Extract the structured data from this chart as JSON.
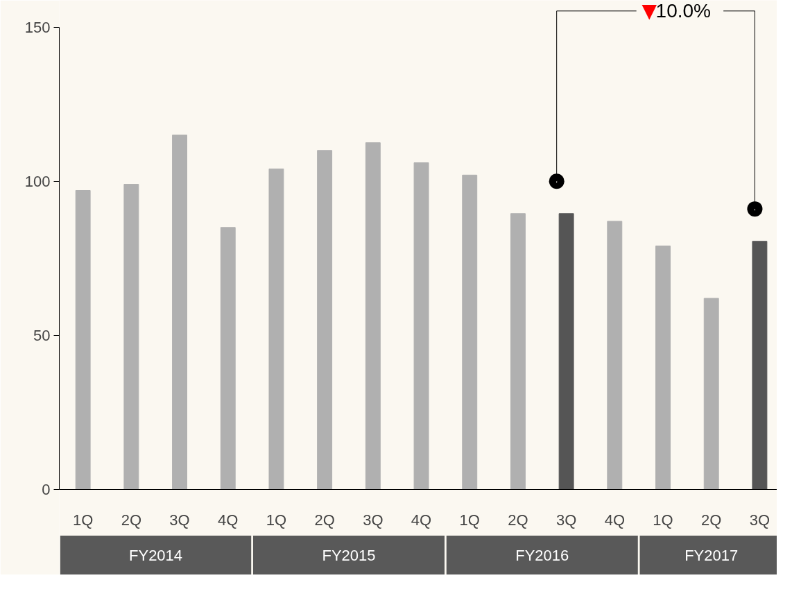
{
  "chart_data": {
    "type": "bar",
    "categories": [
      "1Q",
      "2Q",
      "3Q",
      "4Q",
      "1Q",
      "2Q",
      "3Q",
      "4Q",
      "1Q",
      "2Q",
      "3Q",
      "4Q",
      "1Q",
      "2Q",
      "3Q"
    ],
    "values": [
      97,
      99,
      115,
      85,
      104,
      110,
      112.5,
      106,
      102,
      89.5,
      89.5,
      87,
      79,
      62,
      80.5
    ],
    "colors": [
      "#b0b0b0",
      "#b0b0b0",
      "#b0b0b0",
      "#b0b0b0",
      "#b0b0b0",
      "#b0b0b0",
      "#b0b0b0",
      "#b0b0b0",
      "#b0b0b0",
      "#b0b0b0",
      "#555555",
      "#b0b0b0",
      "#b0b0b0",
      "#b0b0b0",
      "#555555"
    ],
    "ylim": [
      0,
      150
    ],
    "yticks": [
      0,
      50,
      100,
      150
    ],
    "grid": false,
    "annotations": [
      "▼10.0%",
      "FY2014",
      "FY2015",
      "FY2016",
      "FY2017"
    ]
  }
}
